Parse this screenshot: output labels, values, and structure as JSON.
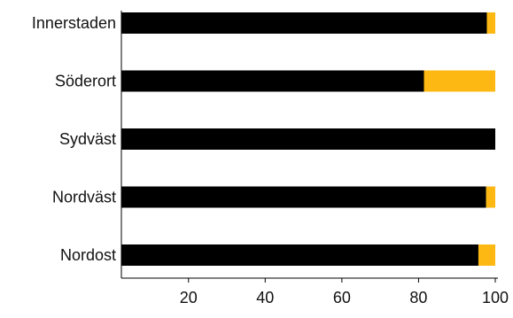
{
  "chart_data": {
    "type": "bar",
    "orientation": "horizontal",
    "stacked": true,
    "categories": [
      "Innerstaden",
      "Söderort",
      "Sydväst",
      "Nordväst",
      "Nordost"
    ],
    "series": [
      {
        "values": [
          95.3,
          78.9,
          99.9,
          95.1,
          93.1
        ],
        "color": "#000000"
      },
      {
        "values": [
          4.7,
          21.1,
          0.1,
          4.9,
          6.9
        ],
        "color": "#FDB813"
      }
    ],
    "xlim": [
      2.5,
      100
    ],
    "x_ticks": [
      20,
      40,
      60,
      80,
      100
    ],
    "grid": false,
    "legend": "none"
  }
}
